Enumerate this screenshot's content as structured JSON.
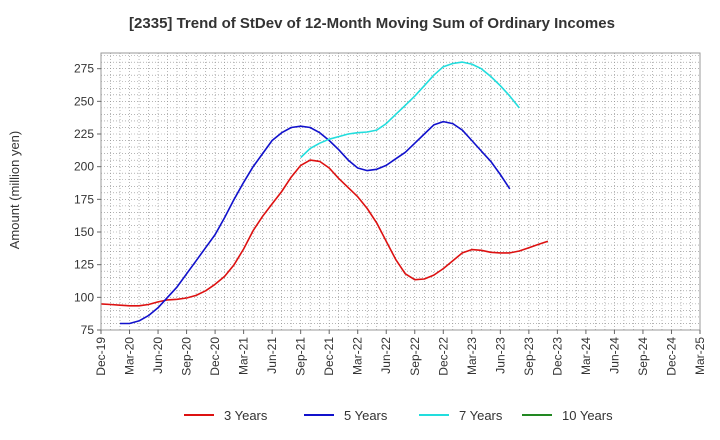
{
  "chart_data": {
    "type": "line",
    "title": "[2335]  Trend of StDev of 12-Month Moving Sum of Ordinary Incomes",
    "xlabel": "",
    "ylabel": "Amount (million yen)",
    "ylim": [
      75,
      287
    ],
    "yticks": [
      75,
      100,
      125,
      150,
      175,
      200,
      225,
      250,
      275
    ],
    "xticks": [
      "Dec-19",
      "Mar-20",
      "Jun-20",
      "Sep-20",
      "Dec-20",
      "Mar-21",
      "Jun-21",
      "Sep-21",
      "Dec-21",
      "Mar-22",
      "Jun-22",
      "Sep-22",
      "Dec-22",
      "Mar-23",
      "Jun-23",
      "Sep-23",
      "Dec-23",
      "Mar-24",
      "Jun-24",
      "Sep-24",
      "Dec-24",
      "Mar-25"
    ],
    "grid": true,
    "legend_position": "bottom",
    "series": [
      {
        "name": "3 Years",
        "color": "#dd1111",
        "start_index": 0,
        "values": [
          95,
          94.5,
          94,
          93.5,
          93.5,
          94.5,
          96.5,
          98,
          98.5,
          99.5,
          101.5,
          105,
          110,
          116,
          125,
          137,
          151,
          162,
          171.5,
          181,
          192,
          201,
          205,
          204,
          199,
          191,
          184,
          177,
          168,
          157,
          143,
          129,
          118,
          113.5,
          114,
          117,
          122,
          128,
          134,
          136.5,
          136,
          134.5,
          134,
          134,
          135.5,
          138,
          140.5,
          143
        ]
      },
      {
        "name": "5 Years",
        "color": "#1111cc",
        "start_index": 2,
        "values": [
          80,
          80,
          82,
          86,
          92,
          100,
          108,
          118,
          128,
          138,
          148,
          161,
          175,
          188,
          200,
          210,
          220,
          226,
          230,
          231,
          230,
          226,
          220,
          213,
          205,
          199,
          197,
          198,
          201,
          206,
          211,
          218,
          225,
          232,
          234.5,
          233,
          228,
          220,
          212,
          204,
          194,
          183
        ]
      },
      {
        "name": "7 Years",
        "color": "#22dddd",
        "start_index": 21,
        "values": [
          207,
          214,
          218,
          221,
          223,
          225,
          226,
          226.5,
          228,
          233,
          240,
          247,
          254,
          262,
          270,
          276.5,
          279,
          280,
          278.5,
          275,
          269,
          262,
          254,
          245
        ]
      },
      {
        "name": "10 Years",
        "color": "#228822",
        "start_index": 0,
        "values": []
      }
    ]
  }
}
